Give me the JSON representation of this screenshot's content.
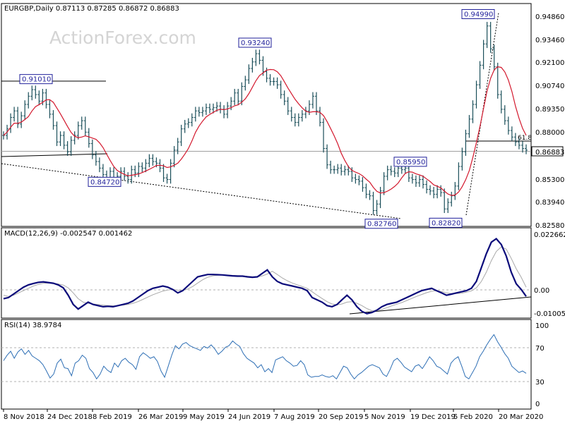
{
  "watermark": "ActionForex.com",
  "chart_data": [
    {
      "type": "line",
      "title": "EURGBP,Daily  0.87113 0.87285 0.86872 0.86883",
      "x_ticks": [
        "8 Nov 2018",
        "24 Dec 2018",
        "8 Feb 2019",
        "26 Mar 2019",
        "9 May 2019",
        "24 Jun 2019",
        "7 Aug 2019",
        "20 Sep 2019",
        "5 Nov 2019",
        "19 Dec 2019",
        "5 Feb 2020",
        "20 Mar 2020"
      ],
      "y_ticks": [
        "0.94860",
        "0.93460",
        "0.92100",
        "0.90740",
        "0.89350",
        "0.88000",
        "0.86883",
        "0.85300",
        "0.83940",
        "0.82580"
      ],
      "ylim": [
        0.8236,
        0.9514
      ],
      "current_price": "0.86883",
      "annotations": [
        {
          "label": "0.91010",
          "value": 0.9101
        },
        {
          "label": "0.84720",
          "value": 0.8472
        },
        {
          "label": "0.93240",
          "value": 0.9324
        },
        {
          "label": "0.82760",
          "value": 0.8276
        },
        {
          "label": "0.85950",
          "value": 0.8595
        },
        {
          "label": "0.82820",
          "value": 0.8282
        },
        {
          "label": "0.94990",
          "value": 0.9499
        }
      ],
      "fib_label": "61.8",
      "series": [
        {
          "values": [
            0.878,
            0.882,
            0.889,
            0.893,
            0.885,
            0.89,
            0.897,
            0.902,
            0.906,
            0.903,
            0.899,
            0.904,
            0.897,
            0.891,
            0.884,
            0.874,
            0.878,
            0.872,
            0.868,
            0.875,
            0.878,
            0.884,
            0.887,
            0.88,
            0.873,
            0.866,
            0.862,
            0.858,
            0.854,
            0.852,
            0.856,
            0.851,
            0.853,
            0.856,
            0.853,
            0.851,
            0.857,
            0.855,
            0.859,
            0.858,
            0.861,
            0.864,
            0.862,
            0.861,
            0.858,
            0.852,
            0.851,
            0.861,
            0.869,
            0.874,
            0.882,
            0.885,
            0.886,
            0.889,
            0.893,
            0.892,
            0.893,
            0.895,
            0.894,
            0.895,
            0.896,
            0.894,
            0.891,
            0.896,
            0.899,
            0.904,
            0.899,
            0.908,
            0.912,
            0.919,
            0.923,
            0.928,
            0.924,
            0.917,
            0.913,
            0.911,
            0.911,
            0.909,
            0.903,
            0.899,
            0.893,
            0.889,
            0.886,
            0.889,
            0.891,
            0.893,
            0.897,
            0.902,
            0.893,
            0.886,
            0.87,
            0.86,
            0.857,
            0.857,
            0.858,
            0.856,
            0.857,
            0.856,
            0.852,
            0.851,
            0.85,
            0.846,
            0.842,
            0.841,
            0.832,
            0.836,
            0.844,
            0.853,
            0.857,
            0.856,
            0.855,
            0.858,
            0.857,
            0.858,
            0.852,
            0.851,
            0.849,
            0.851,
            0.848,
            0.845,
            0.844,
            0.842,
            0.845,
            0.843,
            0.833,
            0.837,
            0.841,
            0.847,
            0.859,
            0.868,
            0.879,
            0.888,
            0.897,
            0.909,
            0.921,
            0.934,
            0.945,
            0.931,
            0.92,
            0.903,
            0.894,
            0.887,
            0.881,
            0.877,
            0.874,
            0.872,
            0.87,
            0.869
          ]
        }
      ]
    },
    {
      "type": "line",
      "title": "MACD(12,26,9) -0.002547 0.001462",
      "y_ticks": [
        "0.022662",
        "0.00",
        "0.0",
        "-0.010052"
      ],
      "ylim": [
        -0.011,
        0.0245
      ],
      "series": [
        {
          "name": "MACD",
          "values": [
            -0.0035,
            -0.003,
            -0.0015,
            0.0,
            0.0015,
            0.0025,
            0.0031,
            0.0036,
            0.0038,
            0.0035,
            0.0032,
            0.0025,
            0.0012,
            -0.002,
            -0.006,
            -0.008,
            -0.0065,
            -0.005,
            -0.006,
            -0.0065,
            -0.007,
            -0.0068,
            -0.007,
            -0.0065,
            -0.006,
            -0.0055,
            -0.0045,
            -0.003,
            -0.0015,
            0.0,
            0.001,
            0.0015,
            0.002,
            0.0015,
            0.0005,
            -0.001,
            0.0,
            0.002,
            0.004,
            0.006,
            0.0065,
            0.007,
            0.007,
            0.0069,
            0.0068,
            0.0066,
            0.0064,
            0.0063,
            0.0063,
            0.006,
            0.0058,
            0.006,
            0.0075,
            0.009,
            0.006,
            0.004,
            0.003,
            0.0025,
            0.002,
            0.0015,
            0.001,
            0.0,
            -0.003,
            -0.004,
            -0.005,
            -0.0065,
            -0.007,
            -0.006,
            -0.004,
            -0.002,
            -0.004,
            -0.007,
            -0.009,
            -0.01,
            -0.0095,
            -0.0085,
            -0.007,
            -0.006,
            -0.0055,
            -0.005,
            -0.004,
            -0.003,
            -0.002,
            -0.001,
            0.0,
            0.0005,
            0.001,
            0.0,
            -0.001,
            -0.002,
            -0.0015,
            -0.001,
            -0.0005,
            0.0,
            0.001,
            0.004,
            0.01,
            0.016,
            0.021,
            0.0225,
            0.02,
            0.015,
            0.008,
            0.003,
            0.0005,
            -0.0025
          ]
        },
        {
          "name": "Signal",
          "values": [
            -0.002,
            -0.0025,
            -0.002,
            -0.001,
            0.0,
            0.001,
            0.002,
            0.0027,
            0.0032,
            0.0033,
            0.0032,
            0.0029,
            0.0024,
            0.0012,
            -0.001,
            -0.0035,
            -0.005,
            -0.0055,
            -0.0058,
            -0.006,
            -0.0063,
            -0.0065,
            -0.0066,
            -0.0065,
            -0.0063,
            -0.006,
            -0.0055,
            -0.0048,
            -0.0038,
            -0.0028,
            -0.0018,
            -0.001,
            -0.0002,
            0.0003,
            0.0005,
            0.0002,
            0.0001,
            0.0007,
            0.0018,
            0.0033,
            0.0047,
            0.0058,
            0.0064,
            0.0067,
            0.0068,
            0.0067,
            0.0066,
            0.0065,
            0.0064,
            0.0062,
            0.006,
            0.006,
            0.0064,
            0.0072,
            0.0084,
            0.007,
            0.0055,
            0.0043,
            0.0033,
            0.0025,
            0.0018,
            0.001,
            -0.0005,
            -0.002,
            -0.0034,
            -0.0048,
            -0.0058,
            -0.0062,
            -0.0058,
            -0.005,
            -0.0048,
            -0.0055,
            -0.0065,
            -0.0078,
            -0.0087,
            -0.0088,
            -0.0082,
            -0.0074,
            -0.0066,
            -0.0059,
            -0.0052,
            -0.0043,
            -0.0034,
            -0.0025,
            -0.0017,
            -0.0009,
            -0.0003,
            0.0,
            -0.0004,
            -0.001,
            -0.0013,
            -0.0013,
            -0.0011,
            -0.0007,
            -0.0001,
            0.0012,
            0.004,
            0.008,
            0.013,
            0.017,
            0.019,
            0.018,
            0.014,
            0.0095,
            0.0058,
            0.0015
          ]
        }
      ]
    },
    {
      "type": "line",
      "title": "RSI(14) 38.9784",
      "y_ticks": [
        "100",
        "70",
        "30",
        "0"
      ],
      "ylim": [
        0,
        100
      ],
      "series": [
        {
          "name": "RSI",
          "values": [
            55,
            62,
            67,
            58,
            66,
            70,
            63,
            68,
            61,
            58,
            55,
            50,
            42,
            33,
            38,
            52,
            57,
            46,
            45,
            36,
            52,
            55,
            62,
            58,
            45,
            40,
            32,
            38,
            48,
            43,
            40,
            52,
            47,
            55,
            58,
            53,
            50,
            44,
            60,
            65,
            62,
            58,
            60,
            54,
            42,
            34,
            48,
            62,
            74,
            70,
            76,
            78,
            74,
            72,
            70,
            68,
            73,
            71,
            75,
            70,
            63,
            67,
            72,
            74,
            80,
            76,
            73,
            64,
            58,
            55,
            52,
            46,
            50,
            41,
            45,
            40,
            56,
            58,
            60,
            55,
            52,
            48,
            49,
            55,
            50,
            37,
            34,
            35,
            35,
            37,
            35,
            34,
            36,
            32,
            40,
            48,
            46,
            38,
            32,
            37,
            40,
            44,
            48,
            50,
            48,
            46,
            38,
            35,
            44,
            55,
            58,
            53,
            47,
            44,
            41,
            48,
            50,
            45,
            52,
            60,
            55,
            48,
            46,
            42,
            38,
            52,
            57,
            60,
            48,
            35,
            32,
            40,
            48,
            60,
            67,
            75,
            82,
            88,
            79,
            72,
            64,
            58,
            48,
            44,
            40,
            42,
            39
          ]
        }
      ]
    }
  ]
}
